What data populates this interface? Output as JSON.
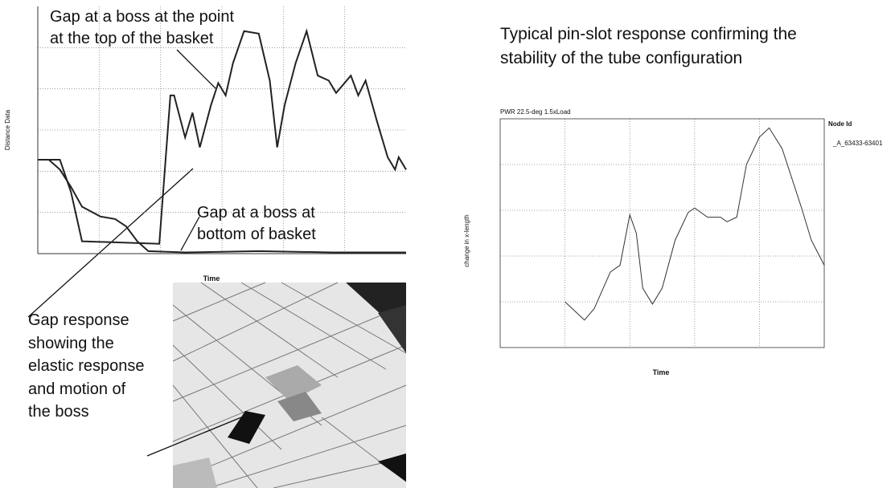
{
  "chart_data": [
    {
      "type": "line",
      "y_label": "Distance Data",
      "x_label": "Time",
      "grid": true,
      "xlim": [
        0,
        100
      ],
      "ylim": [
        0,
        100
      ],
      "annotations": [
        "Gap at a boss at the point at the top of the basket",
        "Gap at a boss at bottom of basket"
      ],
      "series": [
        {
          "color": "#222222",
          "x": [
            0,
            6,
            9,
            12,
            33,
            36,
            37,
            40,
            42,
            44,
            47,
            49,
            51,
            53,
            56,
            60,
            63,
            65,
            67,
            70,
            73,
            76,
            79,
            81,
            85,
            87,
            89,
            92,
            95,
            97,
            98,
            100
          ],
          "values": [
            38,
            38,
            25,
            5,
            4,
            64,
            64,
            47,
            57,
            43,
            60,
            69,
            64,
            77,
            90,
            89,
            70,
            43,
            60,
            77,
            90,
            72,
            70,
            65,
            72,
            64,
            70,
            54,
            39,
            34,
            39,
            34
          ]
        },
        {
          "color": "#222222",
          "x": [
            0,
            3,
            6,
            9,
            12,
            17,
            21,
            24,
            27,
            30,
            40,
            60,
            80,
            100
          ],
          "values": [
            38,
            38,
            34,
            27,
            19,
            15,
            14,
            11,
            5,
            1,
            0.5,
            1,
            0.5,
            0.5
          ]
        }
      ]
    },
    {
      "type": "line",
      "title": "PWR 22.5-deg 1.5xLoad",
      "y_label": "change in x-length",
      "x_label": "Time",
      "grid": true,
      "legend_title": "Node Id",
      "xlim": [
        0,
        100
      ],
      "ylim": [
        0,
        100
      ],
      "series": [
        {
          "name": "_A_63433-63401",
          "color": "#333333",
          "x": [
            20,
            26,
            29,
            34,
            37,
            40,
            42,
            44,
            47,
            50,
            54,
            58,
            60,
            64,
            68,
            70,
            73,
            76,
            80,
            83,
            87,
            93,
            96,
            100
          ],
          "values": [
            20,
            12,
            17,
            33,
            36,
            58,
            50,
            26,
            19,
            26,
            47,
            59,
            61,
            57,
            57,
            55,
            57,
            80,
            92,
            96,
            87,
            61,
            47,
            36
          ]
        }
      ]
    }
  ],
  "captions": [
    "Gap response showing the elastic response and motion of the boss",
    "Typical pin-slot response confirming the stability of the tube configuration"
  ]
}
